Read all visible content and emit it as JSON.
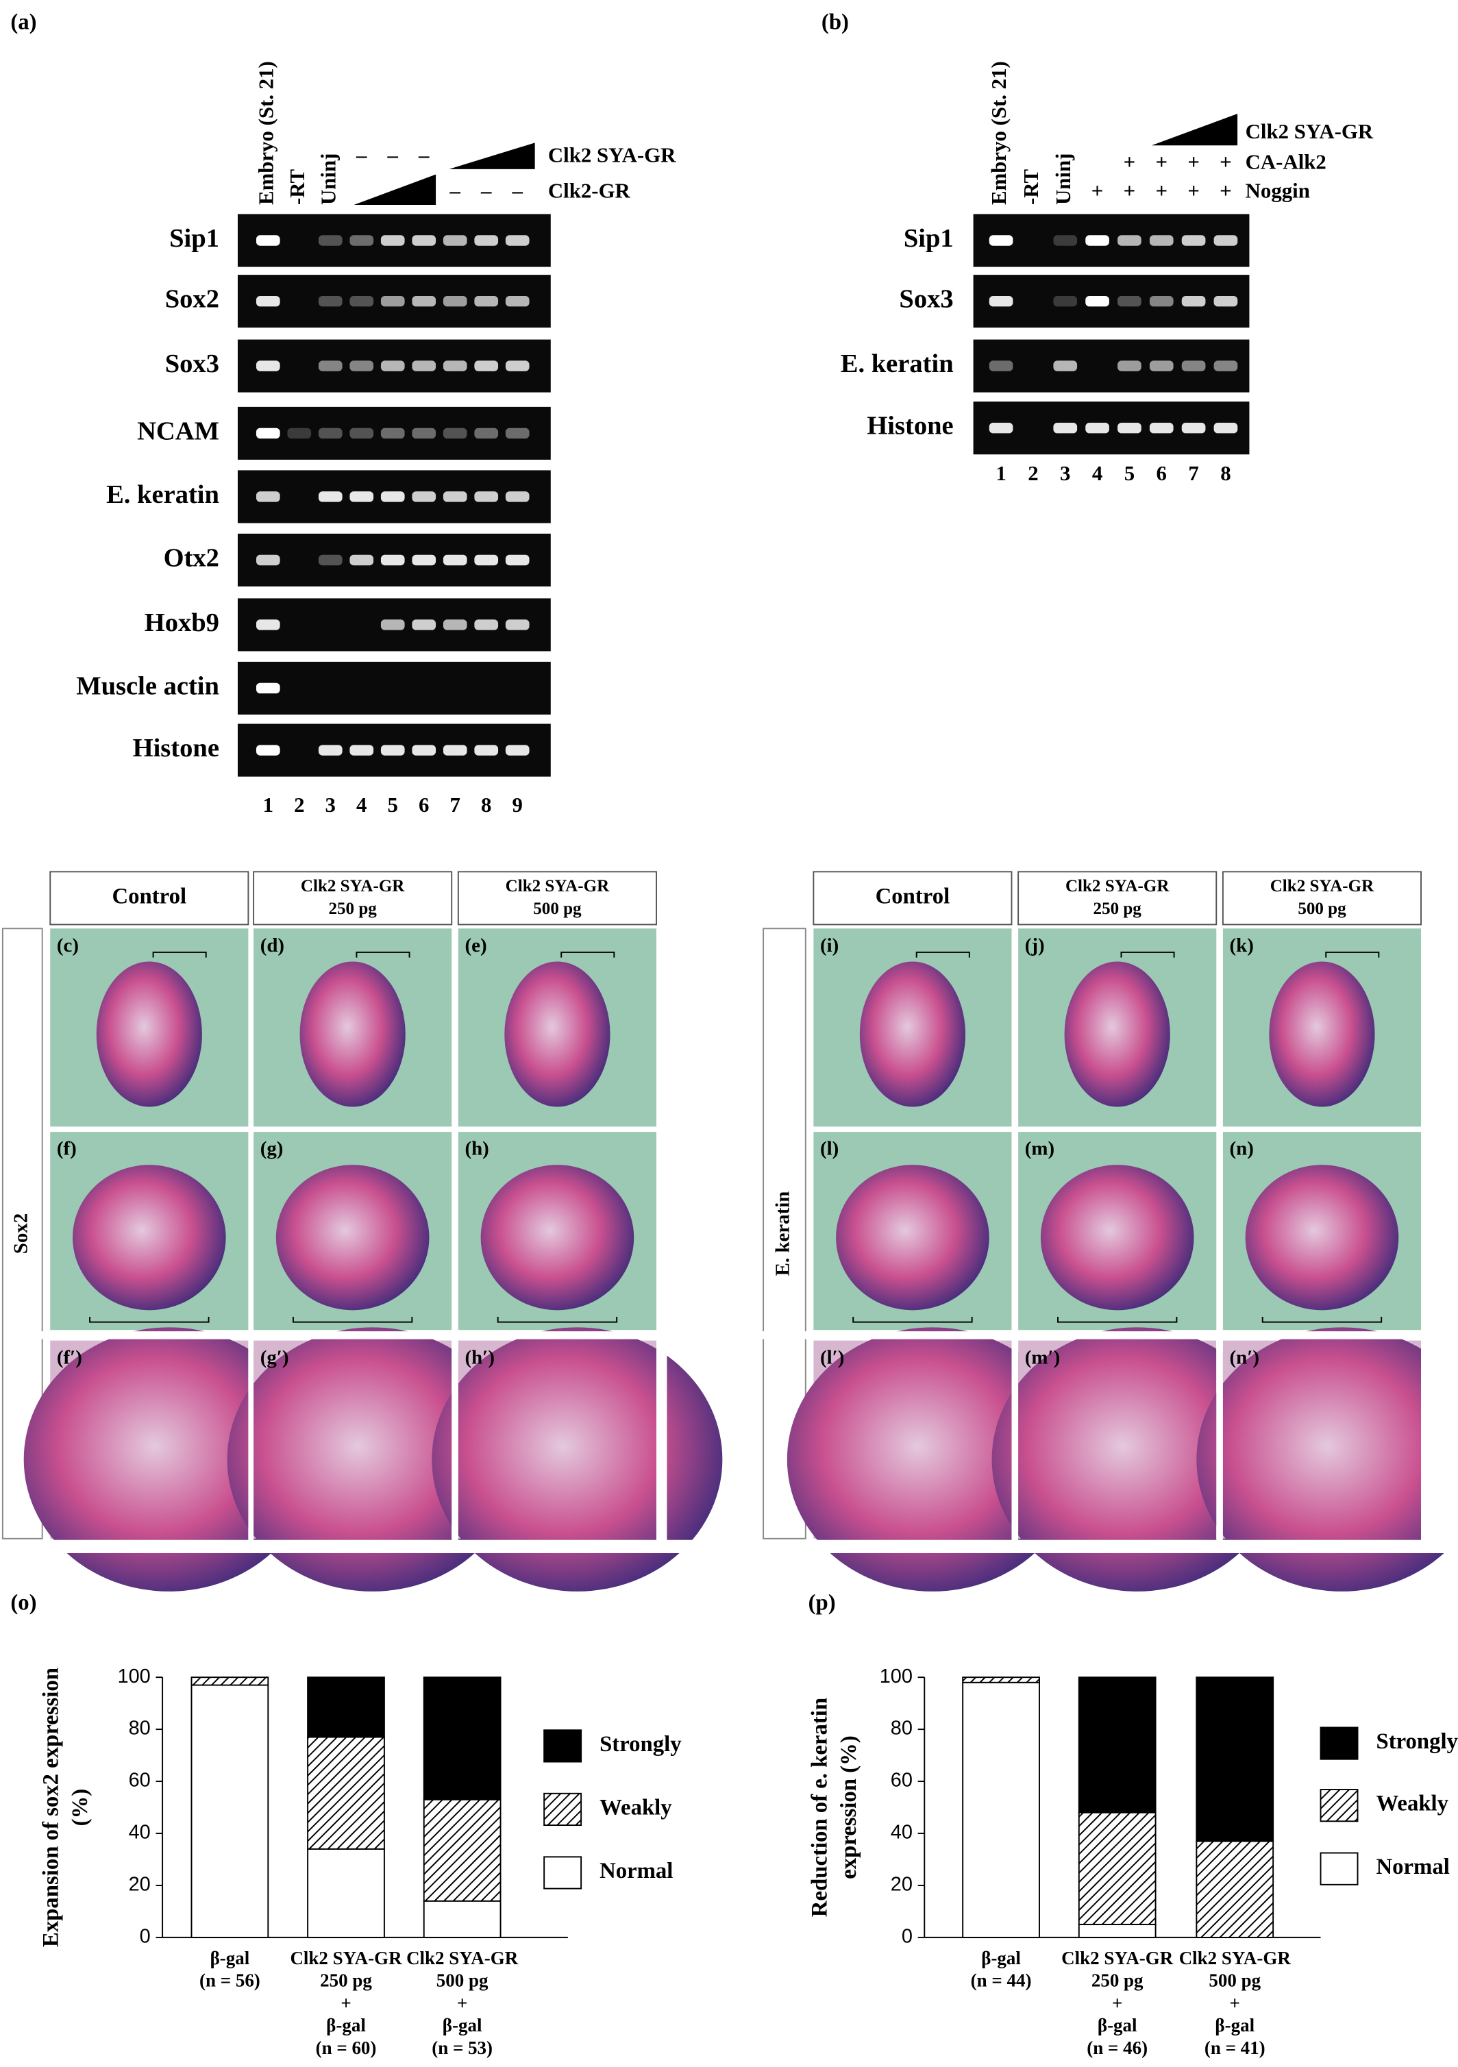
{
  "panel_labels": [
    "(a)",
    "(b)"
  ],
  "gels": [
    {
      "lane_headers": [
        "Embryo (St. 21)",
        "-RT",
        "Uninj"
      ],
      "treatments": [
        {
          "label": "Clk2 SYA-GR",
          "signs": [
            null,
            null,
            null,
            "–",
            "–",
            "–",
            null,
            null,
            null
          ]
        },
        {
          "label": "Clk2-GR",
          "signs": [
            null,
            null,
            null,
            null,
            null,
            null,
            "–",
            "–",
            "–"
          ]
        }
      ],
      "lanes": [
        1,
        2,
        3,
        4,
        5,
        6,
        7,
        8,
        9
      ],
      "rows": [
        {
          "gene": "Sip1",
          "bands": [
            1,
            0,
            0.3,
            0.4,
            0.8,
            0.8,
            0.7,
            0.8,
            0.8
          ]
        },
        {
          "gene": "Sox2",
          "bands": [
            0.9,
            0,
            0.3,
            0.3,
            0.6,
            0.7,
            0.6,
            0.7,
            0.7
          ]
        },
        {
          "gene": "Sox3",
          "bands": [
            0.9,
            0,
            0.5,
            0.5,
            0.7,
            0.7,
            0.7,
            0.8,
            0.8
          ]
        },
        {
          "gene": "NCAM",
          "bands": [
            1,
            0.2,
            0.3,
            0.3,
            0.4,
            0.4,
            0.3,
            0.4,
            0.4
          ]
        },
        {
          "gene": "E. keratin",
          "bands": [
            0.8,
            0,
            0.9,
            0.9,
            0.9,
            0.8,
            0.8,
            0.8,
            0.8
          ]
        },
        {
          "gene": "Otx2",
          "bands": [
            0.8,
            0,
            0.3,
            0.8,
            0.9,
            0.9,
            0.9,
            0.9,
            0.9
          ]
        },
        {
          "gene": "Hoxb9",
          "bands": [
            0.9,
            0,
            0,
            0,
            0.7,
            0.8,
            0.7,
            0.8,
            0.8
          ]
        },
        {
          "gene": "Muscle actin",
          "bands": [
            1,
            0,
            0,
            0,
            0,
            0,
            0,
            0,
            0
          ]
        },
        {
          "gene": "Histone",
          "bands": [
            1,
            0,
            0.9,
            0.9,
            0.9,
            0.9,
            0.9,
            0.9,
            0.9
          ]
        }
      ]
    },
    {
      "lane_headers": [
        "Embryo (St. 21)",
        "-RT",
        "Uninj"
      ],
      "treatments": [
        {
          "label": "Clk2 SYA-GR",
          "signs": [
            null,
            null,
            null,
            null,
            null,
            null,
            null,
            null
          ]
        },
        {
          "label": "CA-Alk2",
          "signs": [
            null,
            null,
            null,
            null,
            "+",
            "+",
            "+",
            "+"
          ]
        },
        {
          "label": "Noggin",
          "signs": [
            null,
            null,
            null,
            "+",
            "+",
            "+",
            "+",
            "+"
          ]
        }
      ],
      "lanes": [
        1,
        2,
        3,
        4,
        5,
        6,
        7,
        8
      ],
      "rows": [
        {
          "gene": "Sip1",
          "bands": [
            1,
            0,
            0.2,
            1,
            0.7,
            0.7,
            0.8,
            0.8
          ]
        },
        {
          "gene": "Sox3",
          "bands": [
            0.9,
            0,
            0.2,
            1,
            0.3,
            0.5,
            0.8,
            0.8
          ]
        },
        {
          "gene": "E. keratin",
          "bands": [
            0.4,
            0,
            0.7,
            0,
            0.6,
            0.6,
            0.5,
            0.5
          ]
        },
        {
          "gene": "Histone",
          "bands": [
            0.9,
            0,
            0.9,
            0.9,
            0.9,
            0.9,
            0.9,
            0.9
          ]
        }
      ]
    }
  ],
  "in_situ": [
    {
      "gene": "Sox2",
      "headers": [
        [
          "Control"
        ],
        [
          "Clk2 SYA-GR",
          "250 pg"
        ],
        [
          "Clk2 SYA-GR",
          "500 pg"
        ]
      ],
      "panels": [
        [
          "(c)",
          "(d)",
          "(e)"
        ],
        [
          "(f)",
          "(g)",
          "(h)"
        ],
        [
          "(f′)",
          "(g′)",
          "(h′)"
        ]
      ]
    },
    {
      "gene": "E. keratin",
      "headers": [
        [
          "Control"
        ],
        [
          "Clk2 SYA-GR",
          "250 pg"
        ],
        [
          "Clk2 SYA-GR",
          "500 pg"
        ]
      ],
      "panels": [
        [
          "(i)",
          "(j)",
          "(k)"
        ],
        [
          "(l)",
          "(m)",
          "(n)"
        ],
        [
          "(l′)",
          "(m′)",
          "(n′)"
        ]
      ]
    }
  ],
  "chart_data": [
    {
      "type": "bar",
      "stacked": true,
      "label": "(o)",
      "y_label": [
        "Expansion of sox2 expression",
        "(%)"
      ],
      "categories": [
        [
          "β-gal",
          "(n = 56)"
        ],
        [
          "Clk2 SYA-GR",
          "250 pg",
          "+",
          "β-gal",
          "(n = 60)"
        ],
        [
          "Clk2 SYA-GR",
          "500 pg",
          "+",
          "β-gal",
          "(n = 53)"
        ]
      ],
      "series": [
        {
          "name": "Normal",
          "color": "#ffffff",
          "values": [
            97,
            34,
            14
          ]
        },
        {
          "name": "Weakly",
          "color": "#ffffff",
          "pattern": "hatch",
          "values": [
            3,
            43,
            39
          ]
        },
        {
          "name": "Strongly",
          "color": "#000000",
          "values": [
            0,
            23,
            47
          ]
        }
      ],
      "ylim": [
        0,
        100
      ],
      "yticks": [
        0,
        20,
        40,
        60,
        80,
        100
      ],
      "legend": "right"
    },
    {
      "type": "bar",
      "stacked": true,
      "label": "(p)",
      "y_label": [
        "Reduction of e. keratin",
        "expression (%)"
      ],
      "categories": [
        [
          "β-gal",
          "(n = 44)"
        ],
        [
          "Clk2 SYA-GR",
          "250 pg",
          "+",
          "β-gal",
          "(n = 46)"
        ],
        [
          "Clk2 SYA-GR",
          "500 pg",
          "+",
          "β-gal",
          "(n = 41)"
        ]
      ],
      "series": [
        {
          "name": "Normal",
          "color": "#ffffff",
          "values": [
            98,
            5,
            0
          ]
        },
        {
          "name": "Weakly",
          "color": "#ffffff",
          "pattern": "hatch",
          "values": [
            2,
            43,
            37
          ]
        },
        {
          "name": "Strongly",
          "color": "#000000",
          "values": [
            0,
            52,
            63
          ]
        }
      ],
      "ylim": [
        0,
        100
      ],
      "yticks": [
        0,
        20,
        40,
        60,
        80,
        100
      ],
      "legend": "right"
    }
  ]
}
